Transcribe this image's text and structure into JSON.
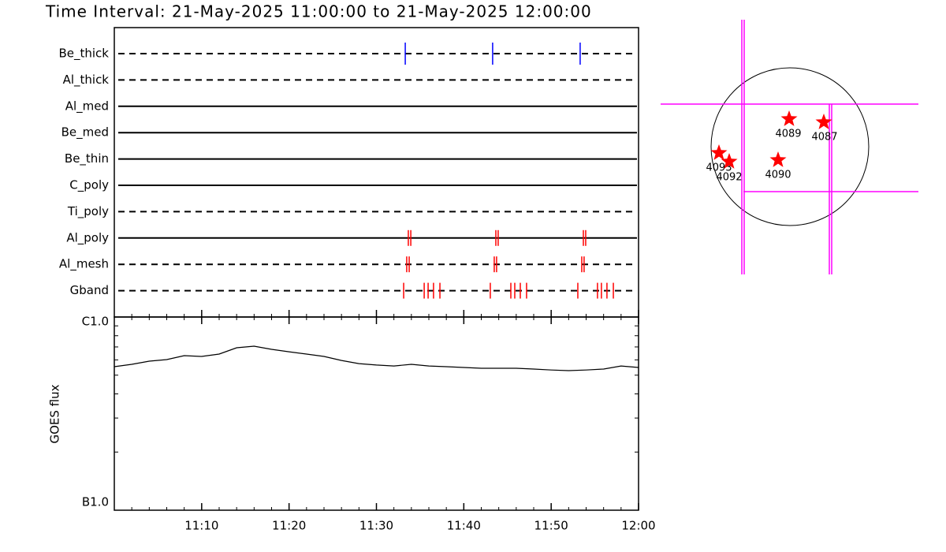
{
  "title": "Time Interval: 21-May-2025 11:00:00 to 21-May-2025 12:00:00",
  "chart_data": [
    {
      "type": "timeline",
      "xlim": [
        "11:00",
        "12:00"
      ],
      "filters": [
        {
          "name": "Be_thick",
          "style": "dashed",
          "color": "#0000ff",
          "times": [
            "11:33:18",
            "11:43:18",
            "11:53:19"
          ]
        },
        {
          "name": "Al_thick",
          "style": "dashed",
          "color": "#ff0000",
          "times": []
        },
        {
          "name": "Al_med",
          "style": "solid",
          "color": "#ff0000",
          "times": []
        },
        {
          "name": "Be_med",
          "style": "solid",
          "color": "#ff0000",
          "times": []
        },
        {
          "name": "Be_thin",
          "style": "solid",
          "color": "#ff0000",
          "times": []
        },
        {
          "name": "C_poly",
          "style": "solid",
          "color": "#ff0000",
          "times": []
        },
        {
          "name": "Ti_poly",
          "style": "dashed",
          "color": "#ff0000",
          "times": []
        },
        {
          "name": "Al_poly",
          "style": "solid",
          "color": "#ff0000",
          "times": [
            "11:33:39",
            "11:33:56",
            "11:43:40",
            "11:43:56",
            "11:53:41",
            "11:53:57"
          ]
        },
        {
          "name": "Al_mesh",
          "style": "dashed",
          "color": "#ff0000",
          "times": [
            "11:33:28",
            "11:33:45",
            "11:43:29",
            "11:43:45",
            "11:53:30",
            "11:53:46"
          ]
        },
        {
          "name": "Gband",
          "style": "dashed",
          "color": "#ff0000",
          "times": [
            "11:33:07",
            "11:35:28",
            "11:35:55",
            "11:36:32",
            "11:37:16",
            "11:43:02",
            "11:45:23",
            "11:45:50",
            "11:46:28",
            "11:47:11",
            "11:53:03",
            "11:55:18",
            "11:55:45",
            "11:56:23",
            "11:57:07"
          ]
        }
      ]
    },
    {
      "type": "line",
      "ylabel": "GOES flux",
      "log": true,
      "color": "#000000",
      "xlim": [
        "11:00",
        "12:00"
      ],
      "xticks": [
        "11:10",
        "11:20",
        "11:30",
        "11:40",
        "11:50",
        "12:00"
      ],
      "ylim": [
        1e-07,
        1e-06
      ],
      "yticks": [
        {
          "value": 1e-07,
          "label": "B1.0"
        },
        {
          "value": 1e-06,
          "label": "C1.0"
        }
      ],
      "minor_yticks": [
        2e-07,
        3e-07,
        4e-07,
        5e-07,
        6e-07,
        7e-07,
        8e-07,
        9e-07
      ],
      "x": [
        "11:00",
        "11:02",
        "11:04",
        "11:06",
        "11:08",
        "11:10",
        "11:12",
        "11:14",
        "11:16",
        "11:18",
        "11:20",
        "11:22",
        "11:24",
        "11:26",
        "11:28",
        "11:30",
        "11:32",
        "11:34",
        "11:36",
        "11:38",
        "11:40",
        "11:42",
        "11:44",
        "11:46",
        "11:48",
        "11:50",
        "11:52",
        "11:54",
        "11:56",
        "11:58",
        "12:00"
      ],
      "values": [
        5.53e-07,
        5.69e-07,
        5.91e-07,
        6.02e-07,
        6.31e-07,
        6.25e-07,
        6.43e-07,
        6.93e-07,
        7.06e-07,
        6.8e-07,
        6.61e-07,
        6.43e-07,
        6.25e-07,
        5.96e-07,
        5.74e-07,
        5.64e-07,
        5.58e-07,
        5.69e-07,
        5.58e-07,
        5.53e-07,
        5.48e-07,
        5.43e-07,
        5.43e-07,
        5.43e-07,
        5.38e-07,
        5.32e-07,
        5.28e-07,
        5.32e-07,
        5.38e-07,
        5.58e-07,
        5.48e-07
      ]
    },
    {
      "type": "map",
      "star_color": "#ff0000",
      "fov_color": "#ff00ff",
      "active_regions": [
        "4089",
        "4087",
        "4093",
        "4092",
        "4090"
      ]
    }
  ]
}
